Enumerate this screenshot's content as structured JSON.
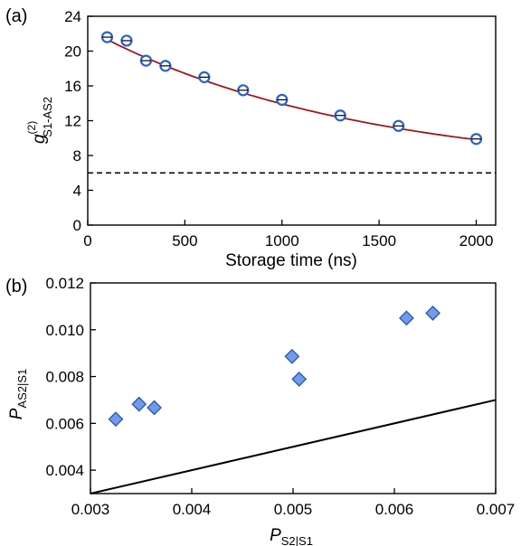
{
  "chart_data": [
    {
      "panel_label": "(a)",
      "type": "scatter",
      "xlabel": "Storage time (ns)",
      "ylabel": {
        "main": "g",
        "sup": "(2)",
        "sub": "S1-AS2"
      },
      "xlim": [
        0,
        2100
      ],
      "ylim": [
        0,
        24
      ],
      "xticks": [
        0,
        500,
        1000,
        1500,
        2000
      ],
      "yticks": [
        0,
        4,
        8,
        12,
        16,
        20,
        24
      ],
      "x": [
        100,
        200,
        300,
        400,
        600,
        800,
        1000,
        1300,
        1600,
        2000
      ],
      "y": [
        21.6,
        21.2,
        18.9,
        18.3,
        17.0,
        15.5,
        14.4,
        12.6,
        11.4,
        9.9
      ],
      "fit_curve": {
        "x0": 100,
        "x1": 2000,
        "amplitude": 16.5,
        "decay_ns": 1370,
        "offset": 5.98
      },
      "threshold_line": 6,
      "grid": false,
      "colors": {
        "marker": "#2b63c8",
        "fit": "#a01818",
        "threshold": "#000000"
      }
    },
    {
      "panel_label": "(b)",
      "type": "scatter",
      "xlabel": {
        "main": "P",
        "sub": "S2|S1"
      },
      "ylabel": {
        "main": "P",
        "sub": "AS2|S1"
      },
      "xlim": [
        0.003,
        0.007
      ],
      "ylim": [
        0.003,
        0.012
      ],
      "xticks": [
        "0.003",
        "0.004",
        "0.005",
        "0.006",
        "0.007"
      ],
      "yticks": [
        "0.004",
        "0.006",
        "0.008",
        "0.010",
        "0.012"
      ],
      "x": [
        0.00325,
        0.00348,
        0.00363,
        0.00499,
        0.00506,
        0.00612,
        0.00638
      ],
      "y": [
        0.00618,
        0.00682,
        0.00667,
        0.00886,
        0.00789,
        0.0105,
        0.01071
      ],
      "reference_line": {
        "x": [
          0.003,
          0.007
        ],
        "y": [
          0.003,
          0.007
        ]
      },
      "grid": false,
      "colors": {
        "marker_fill": "#6f9be8",
        "marker_edge": "#2b55b0",
        "line": "#000000"
      }
    }
  ]
}
